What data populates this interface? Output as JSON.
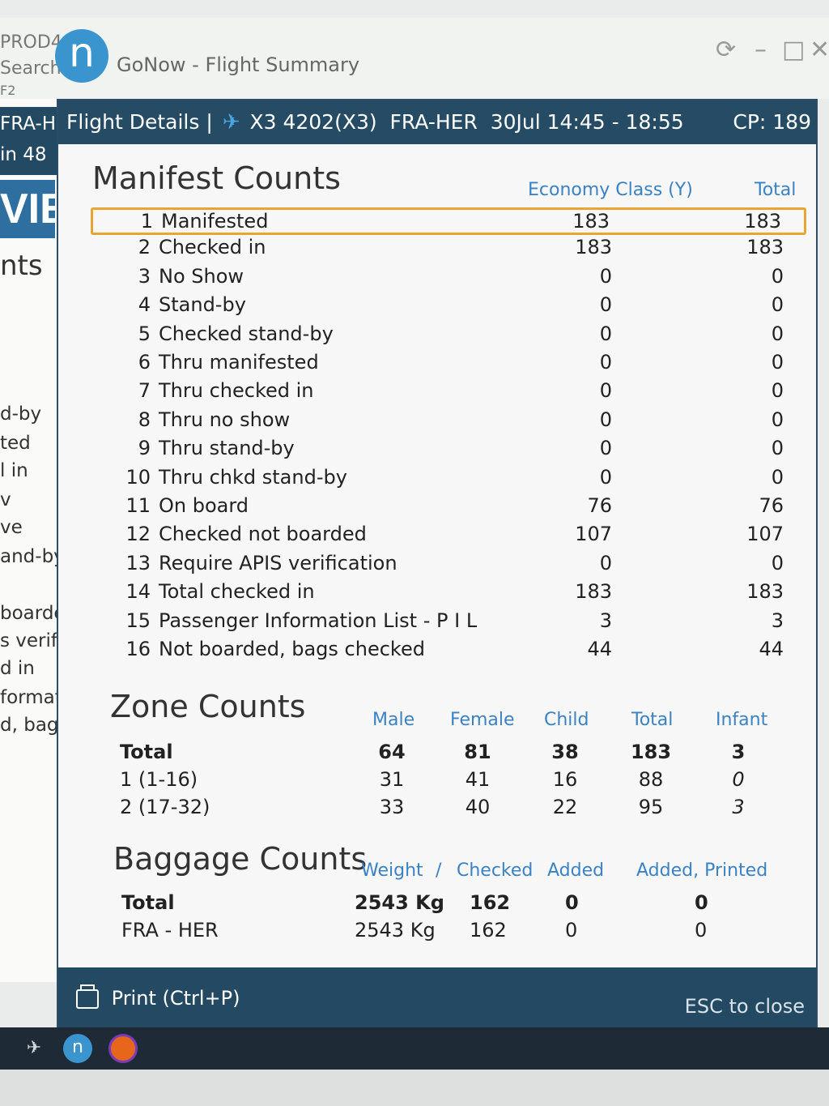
{
  "window": {
    "env_lines": [
      "PROD4",
      "Search",
      "F2"
    ],
    "app_title": "GoNow - Flight Summary",
    "controls": {
      "refresh": "⟳",
      "minimize": "–",
      "maximize": "□",
      "close": "✕"
    }
  },
  "background_app": {
    "band_lines": [
      "FRA-H",
      "in 48"
    ],
    "logo_text": "VIE",
    "labels": [
      "nts",
      "d-by",
      "ted",
      "l in",
      "v",
      "ve",
      "and-by",
      "boarde",
      "s verific",
      "d in",
      "format",
      "d, bags c"
    ]
  },
  "dialog": {
    "header": {
      "prefix": "Flight Details |",
      "plane_icon": "plane-icon",
      "flight": "X3 4202(X3)",
      "route": "FRA-HER",
      "date_time": "30Jul 14:45 - 18:55",
      "cp": "CP: 189"
    },
    "manifest": {
      "title": "Manifest Counts",
      "col_economy": "Economy Class (Y)",
      "col_total": "Total",
      "selected_row": 1,
      "rows": [
        {
          "num": "1",
          "label": "Manifested",
          "economy": "183",
          "total": "183"
        },
        {
          "num": "2",
          "label": "Checked in",
          "economy": "183",
          "total": "183"
        },
        {
          "num": "3",
          "label": "No Show",
          "economy": "0",
          "total": "0"
        },
        {
          "num": "4",
          "label": "Stand-by",
          "economy": "0",
          "total": "0"
        },
        {
          "num": "5",
          "label": "Checked stand-by",
          "economy": "0",
          "total": "0"
        },
        {
          "num": "6",
          "label": "Thru manifested",
          "economy": "0",
          "total": "0"
        },
        {
          "num": "7",
          "label": "Thru checked in",
          "economy": "0",
          "total": "0"
        },
        {
          "num": "8",
          "label": "Thru no show",
          "economy": "0",
          "total": "0"
        },
        {
          "num": "9",
          "label": "Thru stand-by",
          "economy": "0",
          "total": "0"
        },
        {
          "num": "10",
          "label": "Thru chkd stand-by",
          "economy": "0",
          "total": "0"
        },
        {
          "num": "11",
          "label": "On board",
          "economy": "76",
          "total": "76"
        },
        {
          "num": "12",
          "label": "Checked not boarded",
          "economy": "107",
          "total": "107"
        },
        {
          "num": "13",
          "label": "Require APIS verification",
          "economy": "0",
          "total": "0"
        },
        {
          "num": "14",
          "label": "Total checked in",
          "economy": "183",
          "total": "183"
        },
        {
          "num": "15",
          "label": "Passenger Information List - P I L",
          "economy": "3",
          "total": "3"
        },
        {
          "num": "16",
          "label": "Not boarded, bags checked",
          "economy": "44",
          "total": "44"
        }
      ]
    },
    "zone": {
      "title": "Zone Counts",
      "headers": {
        "male": "Male",
        "female": "Female",
        "child": "Child",
        "total": "Total",
        "infant": "Infant"
      },
      "rows": [
        {
          "label": "Total",
          "male": "64",
          "female": "81",
          "child": "38",
          "total": "183",
          "infant": "3"
        },
        {
          "label": "1 (1-16)",
          "male": "31",
          "female": "41",
          "child": "16",
          "total": "88",
          "infant": "0"
        },
        {
          "label": "2 (17-32)",
          "male": "33",
          "female": "40",
          "child": "22",
          "total": "95",
          "infant": "3"
        }
      ]
    },
    "baggage": {
      "title": "Baggage Counts",
      "headers": {
        "weight": "Weight",
        "sep": "/",
        "checked": "Checked",
        "added": "Added",
        "added_printed": "Added, Printed"
      },
      "rows": [
        {
          "label": "Total",
          "weight": "2543 Kg",
          "checked": "162",
          "added": "0",
          "added_printed": "0"
        },
        {
          "label": "FRA - HER",
          "weight": "2543 Kg",
          "checked": "162",
          "added": "0",
          "added_printed": "0"
        }
      ]
    },
    "footer": {
      "print_label": "Print (Ctrl+P)",
      "esc_label": "ESC to close"
    }
  },
  "taskbar": {
    "icons": [
      "plane-icon",
      "gonow-app-icon",
      "firefox-icon"
    ],
    "gonow_letter": "n"
  },
  "colors": {
    "header_bg": "#264b64",
    "column_header": "#3b82c4",
    "selection": "#e8a531",
    "logo": "#3a95cf"
  }
}
